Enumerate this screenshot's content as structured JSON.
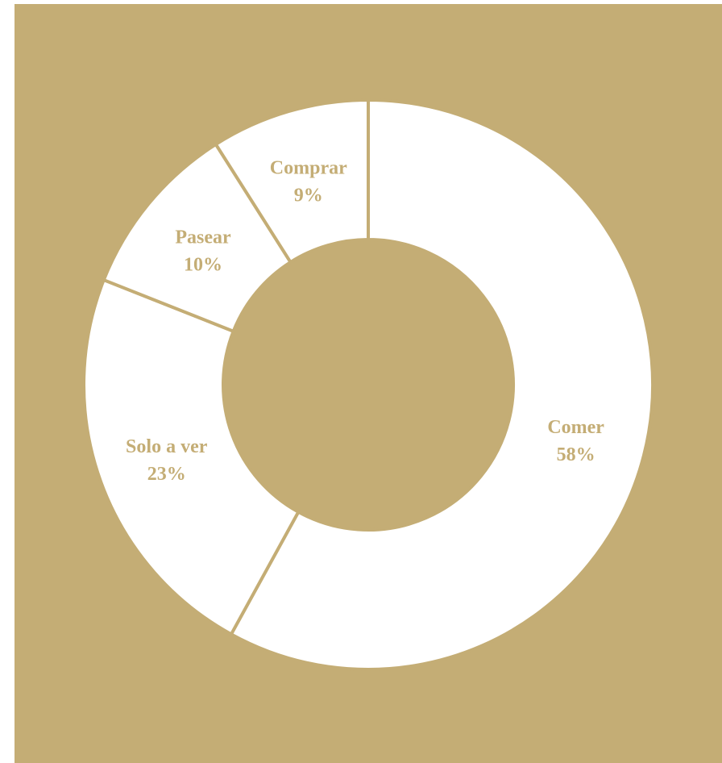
{
  "colors": {
    "background": "#c4ad75",
    "slice_fill": "#ffffff",
    "label_text": "#c4ad75"
  },
  "chart_data": {
    "type": "pie",
    "variant": "donut",
    "start": "12 o'clock, clockwise",
    "categories": [
      "Comer",
      "Solo a ver",
      "Pasear",
      "Comprar"
    ],
    "values": [
      58,
      23,
      10,
      9
    ],
    "value_labels": [
      "58%",
      "23%",
      "10%",
      "9%"
    ],
    "legend": "none (labels on slices)"
  }
}
